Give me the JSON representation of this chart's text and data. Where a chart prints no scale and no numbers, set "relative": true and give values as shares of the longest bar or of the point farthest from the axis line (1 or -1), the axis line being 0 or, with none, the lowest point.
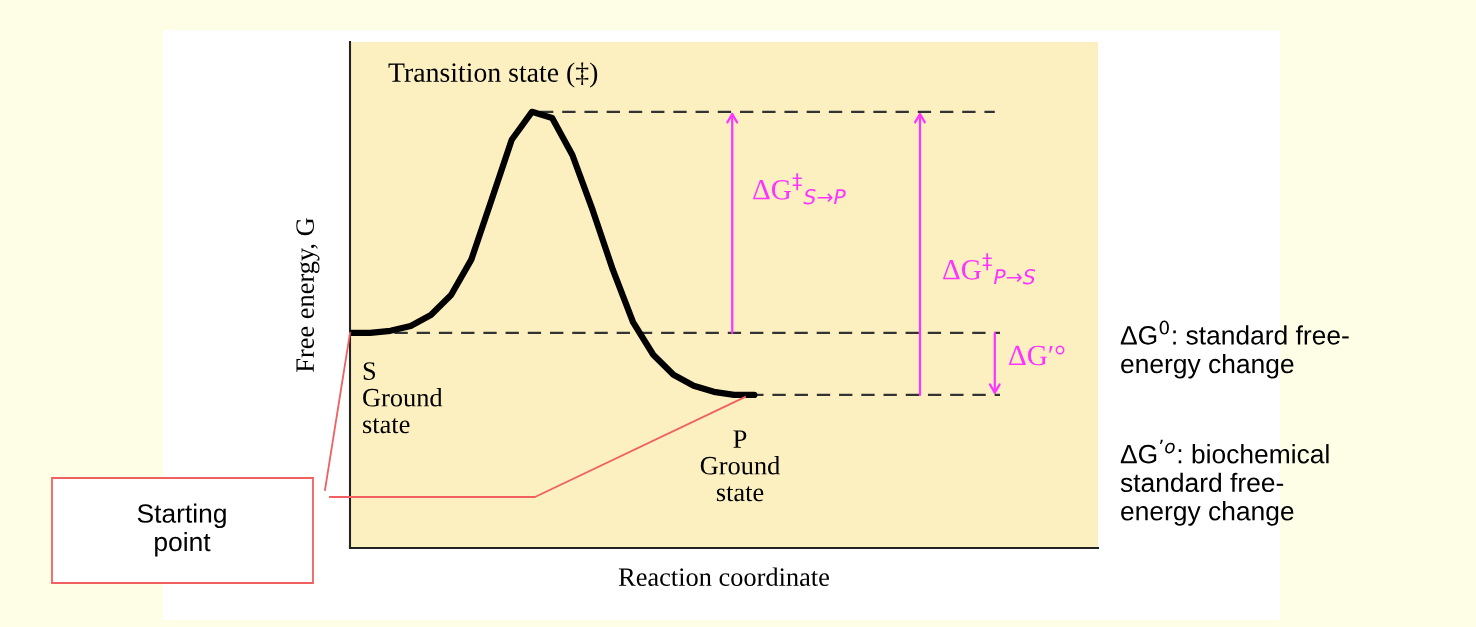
{
  "chart_data": {
    "type": "line",
    "relative": true,
    "tick_labels": false,
    "grid": false,
    "marker": "none",
    "xlabel": "Reaction coordinate",
    "ylabel": "Free energy, G",
    "categories": [
      null,
      null,
      null,
      null,
      null,
      null,
      null,
      null,
      null,
      null,
      null,
      null,
      null,
      null,
      null,
      null,
      null,
      null,
      null,
      null,
      null,
      null,
      null,
      null,
      null,
      null,
      null,
      null,
      null,
      null,
      null,
      null,
      null,
      null,
      null,
      null,
      null,
      null
    ],
    "series": [
      {
        "color": "#000000",
        "values": [
          0.493,
          0.493,
          0.498,
          0.509,
          0.534,
          0.58,
          0.661,
          0.798,
          0.936,
          1.0,
          0.986,
          0.901,
          0.775,
          0.638,
          0.518,
          0.443,
          0.397,
          0.372,
          0.358,
          0.351,
          0.351,
          null,
          null,
          null,
          null,
          null,
          null,
          null,
          null,
          null,
          null,
          null,
          null,
          null,
          null,
          null,
          null,
          null
        ]
      }
    ],
    "ref_lines": [
      {
        "axis": "y",
        "value": 1.0,
        "color": "#333333",
        "line_style": "dashed"
      },
      {
        "axis": "y",
        "value": 0.493,
        "color": "#333333",
        "line_style": "dashed"
      },
      {
        "axis": "y",
        "value": 0.351,
        "color": "#333333",
        "line_style": "dashed"
      }
    ],
    "annotations": [
      "Transition state (‡)",
      "S\nGround\nstate",
      "P\nGround\nstate",
      "ΔG$^{‡}$$_{S→P}$",
      "ΔG$^{‡}$$_{P→S}$",
      "ΔG′°",
      "Starting\npoint",
      "ΔG$^{0}$: standard free-\nenergy change",
      "ΔG$^{’o}$: biochemical\nstandard free-\nenergy change"
    ]
  }
}
